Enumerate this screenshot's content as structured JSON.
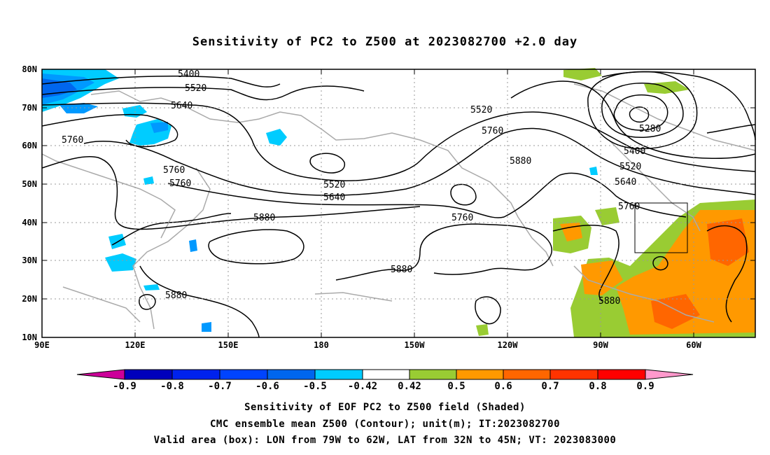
{
  "title": "Sensitivity of PC2 to Z500 at 2023082700 +2.0 day",
  "map": {
    "lat_labels": [
      "80N",
      "70N",
      "60N",
      "50N",
      "40N",
      "30N",
      "20N",
      "10N"
    ],
    "lon_labels": [
      "90E",
      "120E",
      "150E",
      "180",
      "150W",
      "120W",
      "90W",
      "60W"
    ],
    "contour_labels": [
      "5400",
      "5520",
      "5640",
      "5760",
      "5760",
      "5760",
      "5880",
      "5520",
      "5640",
      "5520",
      "5760",
      "5880",
      "5760",
      "5880",
      "5880",
      "5280",
      "5400",
      "5520",
      "5640",
      "5760",
      "5880"
    ],
    "valid_box": {
      "lon_from": "79W",
      "lon_to": "62W",
      "lat_from": "32N",
      "lat_to": "45N"
    }
  },
  "colorbar": {
    "labels": [
      "-0.9",
      "-0.8",
      "-0.7",
      "-0.6",
      "-0.5",
      "-0.42",
      "0.42",
      "0.5",
      "0.6",
      "0.7",
      "0.8",
      "0.9"
    ],
    "colors": [
      "#cc0099",
      "#0000bb",
      "#0022ee",
      "#0044ff",
      "#0066ee",
      "#0099ff",
      "#00ccff",
      "#ffffff",
      "#99cc33",
      "#ff9900",
      "#ff6600",
      "#ff3300",
      "#ff0000",
      "#ff99cc"
    ]
  },
  "captions": [
    "Sensitivity of EOF PC2 to Z500 field (Shaded)",
    "CMC ensemble mean Z500 (Contour); unit(m); IT:2023082700",
    "Valid area (box): LON from 79W to 62W, LAT from 32N to 45N; VT: 2023083000"
  ]
}
